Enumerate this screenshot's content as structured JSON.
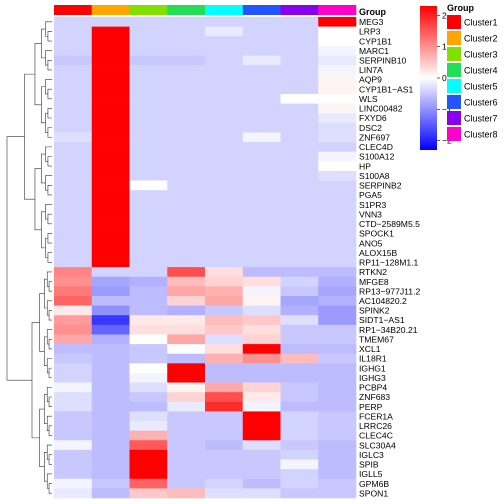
{
  "chart_data": {
    "type": "heatmap",
    "annotation": {
      "title": "Group",
      "columns": [
        "Cluster1",
        "Cluster2",
        "Cluster3",
        "Cluster4",
        "Cluster5",
        "Cluster6",
        "Cluster7",
        "Cluster8"
      ],
      "colors": [
        "#ff0000",
        "#ffa500",
        "#80e000",
        "#22dd55",
        "#00ffff",
        "#2255ff",
        "#8800ee",
        "#ff00cc"
      ]
    },
    "legend_group": {
      "title": "Group",
      "entries": [
        "Cluster1",
        "Cluster2",
        "Cluster3",
        "Cluster4",
        "Cluster5",
        "Cluster6",
        "Cluster7",
        "Cluster8"
      ]
    },
    "colorbar": {
      "ticks": [
        "2",
        "1",
        "0",
        "−1",
        "−2"
      ],
      "tick_values": [
        2,
        1,
        0,
        -1,
        -2
      ],
      "range": [
        -2.3,
        2.3
      ],
      "colors": {
        "low": "#0000ff",
        "mid": "#ffffff",
        "high": "#ff0000"
      }
    },
    "rows": [
      "MEG3",
      "LRP3",
      "CYP1B1",
      "MARC1",
      "SERPINB10",
      "LIN7A",
      "AQP9",
      "CYP1B1−AS1",
      "WLS",
      "LINC00482",
      "FXYD6",
      "DSC2",
      "ZNF697",
      "CLEC4D",
      "S100A12",
      "HP",
      "S100A8",
      "SERPINB2",
      "PGA5",
      "S1PR3",
      "VNN3",
      "CTD−2589M5.5",
      "SPOCK1",
      "ANO5",
      "ALOX15B",
      "RP11−128M1.1",
      "RTKN2",
      "MFGE8",
      "RP13−977J11.2",
      "AC104820.2",
      "SPINK2",
      "SIDT1−AS1",
      "RP1−34B20.21",
      "TMEM67",
      "XCL1",
      "IL18R1",
      "IGHG1",
      "IGHG3",
      "PCBP4",
      "ZNF683",
      "PERP",
      "FCER1A",
      "LRRC26",
      "CLEC4C",
      "SLC30A4",
      "IGLC3",
      "SPIB",
      "IGLL5",
      "GPM6B",
      "SPON1"
    ],
    "columns": [
      "Cluster1",
      "Cluster2",
      "Cluster3",
      "Cluster4",
      "Cluster5",
      "Cluster6",
      "Cluster7",
      "Cluster8"
    ],
    "values": [
      [
        -0.4,
        -0.4,
        -0.4,
        -0.4,
        -0.4,
        -0.4,
        -0.4,
        2.3
      ],
      [
        -0.4,
        2.3,
        -0.4,
        -0.4,
        -0.2,
        -0.4,
        -0.4,
        0.0
      ],
      [
        -0.4,
        2.3,
        -0.4,
        -0.4,
        -0.4,
        -0.4,
        -0.4,
        0.0
      ],
      [
        -0.4,
        2.3,
        -0.4,
        -0.4,
        -0.4,
        -0.4,
        -0.4,
        -0.1
      ],
      [
        -0.5,
        2.3,
        -0.5,
        -0.5,
        -0.4,
        -0.2,
        -0.4,
        -0.2
      ],
      [
        -0.4,
        2.3,
        -0.4,
        -0.4,
        -0.4,
        -0.4,
        -0.4,
        -0.1
      ],
      [
        -0.4,
        2.3,
        -0.4,
        -0.4,
        -0.4,
        -0.4,
        -0.4,
        0.1
      ],
      [
        -0.4,
        2.3,
        -0.4,
        -0.4,
        -0.4,
        -0.4,
        -0.4,
        0.1
      ],
      [
        -0.4,
        2.3,
        -0.4,
        -0.4,
        -0.4,
        -0.4,
        0.0,
        0.0
      ],
      [
        -0.4,
        2.3,
        -0.4,
        -0.4,
        -0.4,
        -0.4,
        -0.4,
        0.1
      ],
      [
        -0.4,
        2.3,
        -0.4,
        -0.4,
        -0.4,
        -0.4,
        -0.4,
        -0.2
      ],
      [
        -0.4,
        2.3,
        -0.4,
        -0.4,
        -0.4,
        -0.4,
        -0.4,
        -0.3
      ],
      [
        -0.3,
        2.3,
        -0.4,
        -0.4,
        -0.4,
        -0.1,
        -0.4,
        -0.3
      ],
      [
        -0.4,
        2.3,
        -0.4,
        -0.4,
        -0.4,
        -0.4,
        -0.4,
        -0.4
      ],
      [
        -0.4,
        2.3,
        -0.4,
        -0.4,
        -0.4,
        -0.4,
        -0.4,
        -0.1
      ],
      [
        -0.4,
        2.3,
        -0.4,
        -0.4,
        -0.4,
        -0.4,
        -0.4,
        0.0
      ],
      [
        -0.4,
        2.3,
        -0.4,
        -0.4,
        -0.4,
        -0.4,
        -0.4,
        -0.3
      ],
      [
        -0.4,
        2.3,
        0.0,
        -0.4,
        -0.4,
        -0.4,
        -0.4,
        -0.4
      ],
      [
        -0.4,
        2.3,
        -0.4,
        -0.4,
        -0.4,
        -0.4,
        -0.4,
        -0.4
      ],
      [
        -0.4,
        2.3,
        -0.4,
        -0.4,
        -0.4,
        -0.4,
        -0.4,
        -0.4
      ],
      [
        -0.4,
        2.3,
        -0.4,
        -0.4,
        -0.4,
        -0.4,
        -0.4,
        -0.4
      ],
      [
        -0.4,
        2.3,
        -0.4,
        -0.4,
        -0.4,
        -0.4,
        -0.4,
        -0.4
      ],
      [
        -0.4,
        2.3,
        -0.4,
        -0.4,
        -0.4,
        -0.4,
        -0.4,
        -0.4
      ],
      [
        -0.4,
        2.3,
        -0.4,
        -0.4,
        -0.4,
        -0.4,
        -0.4,
        -0.4
      ],
      [
        -0.4,
        2.3,
        -0.4,
        -0.4,
        -0.4,
        -0.4,
        -0.4,
        -0.4
      ],
      [
        -0.4,
        2.3,
        -0.4,
        -0.4,
        -0.4,
        -0.4,
        -0.4,
        -0.4
      ],
      [
        1.1,
        -0.4,
        -0.4,
        1.6,
        0.3,
        -0.6,
        -0.6,
        -0.6
      ],
      [
        1.0,
        -0.8,
        -0.7,
        0.6,
        0.4,
        0.3,
        -0.4,
        -0.7
      ],
      [
        1.2,
        -0.9,
        -0.6,
        0.8,
        0.7,
        -0.1,
        -0.5,
        -0.8
      ],
      [
        1.4,
        -0.6,
        -0.6,
        0.4,
        0.8,
        0.1,
        -0.8,
        -0.7
      ],
      [
        0.2,
        -1.0,
        -0.6,
        -0.7,
        -0.5,
        -0.3,
        -0.7,
        -0.9
      ],
      [
        0.9,
        -1.8,
        0.2,
        0.2,
        0.6,
        0.5,
        -0.3,
        -0.9
      ],
      [
        1.0,
        -1.4,
        0.3,
        0.3,
        0.5,
        0.3,
        -0.5,
        -0.5
      ],
      [
        0.8,
        -0.7,
        0.0,
        0.8,
        -0.3,
        0.4,
        -0.5,
        -0.5
      ],
      [
        -0.6,
        -0.6,
        -0.5,
        0.0,
        0.3,
        2.3,
        -0.6,
        -0.6
      ],
      [
        -0.5,
        -0.6,
        -0.5,
        -0.6,
        0.7,
        1.0,
        0.6,
        -0.5
      ],
      [
        -0.4,
        -0.6,
        0.0,
        2.3,
        -0.6,
        -0.6,
        -0.6,
        -0.6
      ],
      [
        -0.4,
        -0.6,
        -0.1,
        2.3,
        -0.6,
        -0.6,
        -0.6,
        -0.6
      ],
      [
        -0.1,
        -0.6,
        -0.3,
        0.1,
        0.8,
        0.4,
        -0.5,
        -0.6
      ],
      [
        -0.3,
        -0.6,
        -0.5,
        0.4,
        1.6,
        0.2,
        -0.5,
        -0.6
      ],
      [
        -0.3,
        -0.6,
        -0.6,
        -0.2,
        1.9,
        -0.1,
        -0.6,
        -0.6
      ],
      [
        -0.5,
        -0.6,
        -0.3,
        -0.5,
        -0.5,
        2.3,
        -0.4,
        -0.5
      ],
      [
        -0.5,
        -0.6,
        -0.2,
        -0.5,
        -0.5,
        2.3,
        -0.4,
        -0.5
      ],
      [
        -0.5,
        -0.6,
        0.7,
        -0.5,
        -0.5,
        2.3,
        -0.4,
        -0.5
      ],
      [
        -0.1,
        -0.6,
        1.5,
        -0.5,
        -0.6,
        -0.3,
        -0.5,
        -0.6
      ],
      [
        -0.5,
        -0.6,
        2.3,
        -0.5,
        -0.5,
        -0.5,
        -0.4,
        -0.6
      ],
      [
        -0.5,
        -0.6,
        2.3,
        -0.5,
        -0.5,
        -0.5,
        -0.1,
        -0.6
      ],
      [
        -0.5,
        -0.6,
        2.3,
        -0.5,
        -0.5,
        -0.5,
        -0.4,
        -0.6
      ],
      [
        -0.1,
        -0.5,
        1.4,
        -0.5,
        -0.4,
        -0.6,
        -0.4,
        -0.5
      ],
      [
        -0.2,
        -0.6,
        0.5,
        0.6,
        -0.3,
        -0.3,
        -0.5,
        -0.5
      ]
    ],
    "grid": false,
    "legend_placement": "right"
  }
}
